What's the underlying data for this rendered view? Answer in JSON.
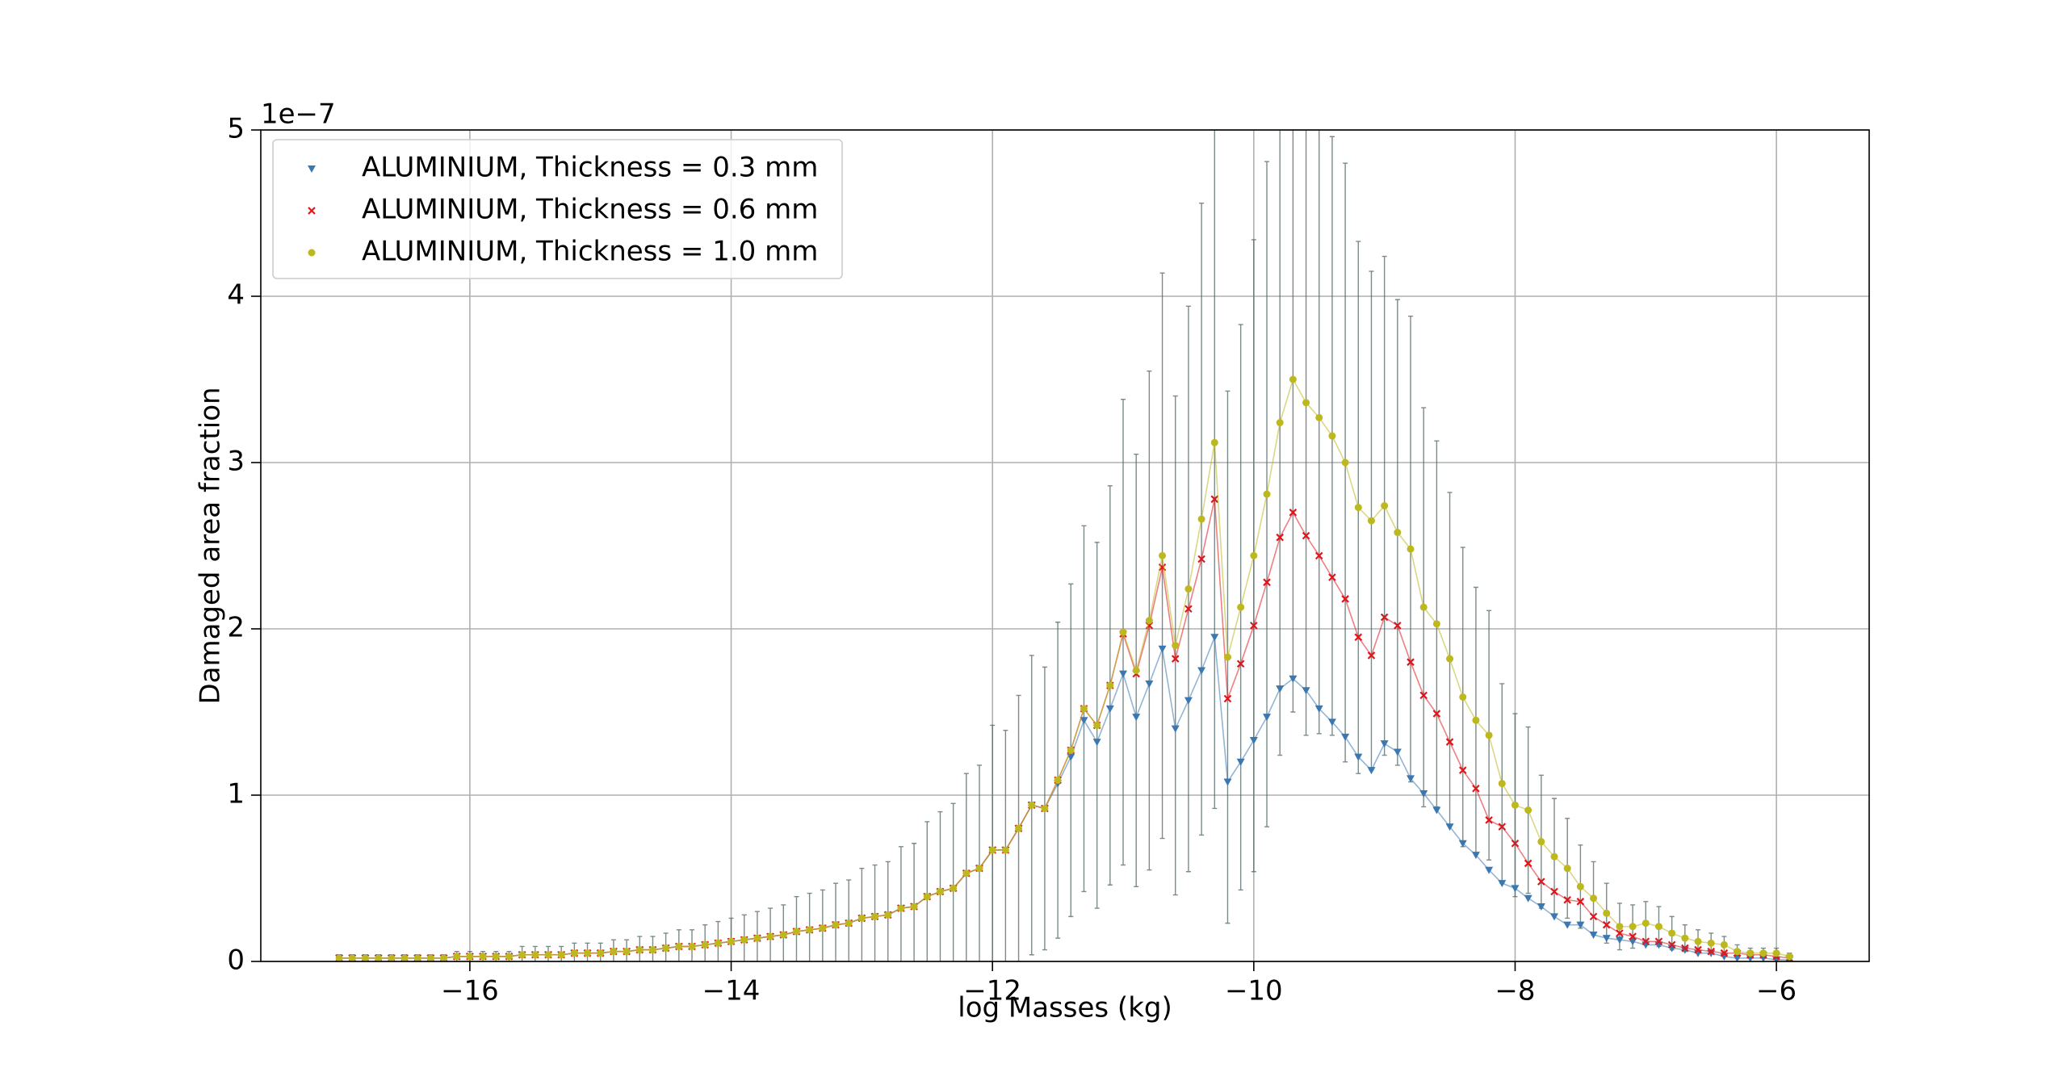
{
  "chart_data": {
    "type": "scatter_errorbar",
    "xlabel": "log Masses (kg)",
    "ylabel": "Damaged area fraction",
    "y_offset_label": "1e−7",
    "xlim": [
      -17.6,
      -5.29
    ],
    "ylim": [
      0,
      5
    ],
    "xticks": [
      {
        "value": -16,
        "label": "−16"
      },
      {
        "value": -14,
        "label": "−14"
      },
      {
        "value": -12,
        "label": "−12"
      },
      {
        "value": -10,
        "label": "−10"
      },
      {
        "value": -8,
        "label": "−8"
      },
      {
        "value": -6,
        "label": "−6"
      }
    ],
    "yticks": [
      0,
      1,
      2,
      3,
      4,
      5
    ],
    "grid": true,
    "legend": "upper left",
    "error_color": "#4f6363",
    "x": [
      -17.0,
      -16.9,
      -16.8,
      -16.7,
      -16.6,
      -16.5,
      -16.4,
      -16.3,
      -16.2,
      -16.1,
      -16.0,
      -15.9,
      -15.8,
      -15.7,
      -15.6,
      -15.5,
      -15.4,
      -15.3,
      -15.2,
      -15.1,
      -15.0,
      -14.9,
      -14.8,
      -14.7,
      -14.6,
      -14.5,
      -14.4,
      -14.3,
      -14.2,
      -14.1,
      -14.0,
      -13.9,
      -13.8,
      -13.7,
      -13.6,
      -13.5,
      -13.4,
      -13.3,
      -13.2,
      -13.1,
      -13.0,
      -12.9,
      -12.8,
      -12.7,
      -12.6,
      -12.5,
      -12.4,
      -12.3,
      -12.2,
      -12.1,
      -12.0,
      -11.9,
      -11.8,
      -11.7,
      -11.6,
      -11.5,
      -11.4,
      -11.3,
      -11.2,
      -11.1,
      -11.0,
      -10.9,
      -10.8,
      -10.7,
      -10.6,
      -10.5,
      -10.4,
      -10.3,
      -10.2,
      -10.1,
      -10.0,
      -9.9,
      -9.8,
      -9.7,
      -9.6,
      -9.5,
      -9.4,
      -9.3,
      -9.2,
      -9.1,
      -9.0,
      -8.9,
      -8.8,
      -8.7,
      -8.6,
      -8.5,
      -8.4,
      -8.3,
      -8.2,
      -8.1,
      -8.0,
      -7.9,
      -7.8,
      -7.7,
      -7.6,
      -7.5,
      -7.4,
      -7.3,
      -7.2,
      -7.1,
      -7.0,
      -6.9,
      -6.8,
      -6.7,
      -6.6,
      -6.5,
      -6.4,
      -6.3,
      -6.2,
      -6.1,
      -6.0,
      -5.9
    ],
    "series": [
      {
        "name": "ALUMINIUM, Thickness = 0.3 mm",
        "color": "#3b78b0",
        "marker": "triangle",
        "values": [
          0.02,
          0.02,
          0.02,
          0.02,
          0.02,
          0.02,
          0.02,
          0.02,
          0.02,
          0.03,
          0.03,
          0.03,
          0.03,
          0.03,
          0.04,
          0.04,
          0.04,
          0.04,
          0.05,
          0.05,
          0.05,
          0.06,
          0.06,
          0.07,
          0.07,
          0.08,
          0.09,
          0.09,
          0.1,
          0.11,
          0.12,
          0.13,
          0.14,
          0.15,
          0.16,
          0.18,
          0.19,
          0.2,
          0.22,
          0.23,
          0.26,
          0.27,
          0.28,
          0.32,
          0.33,
          0.39,
          0.42,
          0.44,
          0.53,
          0.56,
          0.67,
          0.67,
          0.8,
          0.94,
          0.92,
          1.07,
          1.23,
          1.45,
          1.32,
          1.52,
          1.73,
          1.47,
          1.67,
          1.88,
          1.4,
          1.57,
          1.75,
          1.95,
          1.08,
          1.2,
          1.33,
          1.47,
          1.64,
          1.7,
          1.63,
          1.52,
          1.44,
          1.35,
          1.23,
          1.15,
          1.31,
          1.26,
          1.1,
          1.01,
          0.91,
          0.81,
          0.71,
          0.64,
          0.55,
          0.47,
          0.44,
          0.38,
          0.33,
          0.27,
          0.22,
          0.22,
          0.16,
          0.14,
          0.13,
          0.12,
          0.1,
          0.1,
          0.08,
          0.07,
          0.05,
          0.05,
          0.03,
          0.02,
          0.02,
          0.02,
          0.01,
          0.01
        ]
      },
      {
        "name": "ALUMINIUM, Thickness = 0.6 mm",
        "color": "#e0161b",
        "marker": "x",
        "values": [
          0.02,
          0.02,
          0.02,
          0.02,
          0.02,
          0.02,
          0.02,
          0.02,
          0.02,
          0.03,
          0.03,
          0.03,
          0.03,
          0.03,
          0.04,
          0.04,
          0.04,
          0.04,
          0.05,
          0.05,
          0.05,
          0.06,
          0.06,
          0.07,
          0.07,
          0.08,
          0.09,
          0.09,
          0.1,
          0.11,
          0.12,
          0.13,
          0.14,
          0.15,
          0.16,
          0.18,
          0.19,
          0.2,
          0.22,
          0.23,
          0.26,
          0.27,
          0.28,
          0.32,
          0.33,
          0.39,
          0.42,
          0.44,
          0.53,
          0.56,
          0.67,
          0.67,
          0.8,
          0.94,
          0.92,
          1.09,
          1.27,
          1.52,
          1.42,
          1.66,
          1.97,
          1.73,
          2.02,
          2.37,
          1.82,
          2.12,
          2.42,
          2.78,
          1.58,
          1.79,
          2.02,
          2.28,
          2.55,
          2.7,
          2.56,
          2.44,
          2.31,
          2.18,
          1.95,
          1.84,
          2.07,
          2.02,
          1.8,
          1.6,
          1.49,
          1.32,
          1.15,
          1.04,
          0.85,
          0.81,
          0.71,
          0.59,
          0.48,
          0.42,
          0.37,
          0.36,
          0.27,
          0.22,
          0.17,
          0.15,
          0.12,
          0.12,
          0.1,
          0.08,
          0.07,
          0.06,
          0.05,
          0.05,
          0.04,
          0.04,
          0.03,
          0.02
        ]
      },
      {
        "name": "ALUMINIUM, Thickness = 1.0 mm",
        "color": "#bcb81e",
        "marker": "circle",
        "values": [
          0.02,
          0.02,
          0.02,
          0.02,
          0.02,
          0.02,
          0.02,
          0.02,
          0.02,
          0.03,
          0.03,
          0.03,
          0.03,
          0.03,
          0.04,
          0.04,
          0.04,
          0.04,
          0.05,
          0.05,
          0.05,
          0.06,
          0.06,
          0.07,
          0.07,
          0.08,
          0.09,
          0.09,
          0.1,
          0.11,
          0.12,
          0.13,
          0.14,
          0.15,
          0.16,
          0.18,
          0.19,
          0.2,
          0.22,
          0.23,
          0.26,
          0.27,
          0.28,
          0.32,
          0.33,
          0.39,
          0.42,
          0.44,
          0.53,
          0.56,
          0.67,
          0.67,
          0.8,
          0.94,
          0.92,
          1.09,
          1.27,
          1.52,
          1.42,
          1.66,
          1.98,
          1.75,
          2.05,
          2.44,
          1.9,
          2.24,
          2.66,
          3.12,
          1.83,
          2.13,
          2.44,
          2.81,
          3.24,
          3.5,
          3.36,
          3.27,
          3.16,
          3.0,
          2.73,
          2.65,
          2.74,
          2.58,
          2.48,
          2.13,
          2.03,
          1.82,
          1.59,
          1.45,
          1.36,
          1.07,
          0.94,
          0.91,
          0.72,
          0.63,
          0.56,
          0.45,
          0.38,
          0.29,
          0.21,
          0.21,
          0.23,
          0.21,
          0.17,
          0.14,
          0.12,
          0.11,
          0.1,
          0.06,
          0.05,
          0.05,
          0.05,
          0.03
        ],
        "errors": [
          0.02,
          0.02,
          0.02,
          0.02,
          0.02,
          0.02,
          0.02,
          0.02,
          0.02,
          0.03,
          0.03,
          0.03,
          0.03,
          0.03,
          0.05,
          0.05,
          0.05,
          0.05,
          0.06,
          0.06,
          0.06,
          0.07,
          0.07,
          0.08,
          0.08,
          0.09,
          0.1,
          0.1,
          0.12,
          0.13,
          0.14,
          0.15,
          0.16,
          0.17,
          0.18,
          0.21,
          0.22,
          0.23,
          0.25,
          0.26,
          0.3,
          0.31,
          0.32,
          0.37,
          0.38,
          0.45,
          0.48,
          0.51,
          0.6,
          0.62,
          0.75,
          0.72,
          0.8,
          0.9,
          0.85,
          0.95,
          1.0,
          1.1,
          1.1,
          1.2,
          1.4,
          1.3,
          1.5,
          1.7,
          1.5,
          1.7,
          1.9,
          2.2,
          1.6,
          1.7,
          1.9,
          2.0,
          2.0,
          2.0,
          2.0,
          1.9,
          1.8,
          1.8,
          1.6,
          1.5,
          1.5,
          1.4,
          1.4,
          1.2,
          1.1,
          1.0,
          0.9,
          0.8,
          0.75,
          0.6,
          0.55,
          0.5,
          0.4,
          0.35,
          0.3,
          0.25,
          0.22,
          0.18,
          0.14,
          0.13,
          0.13,
          0.12,
          0.1,
          0.08,
          0.07,
          0.06,
          0.05,
          0.04,
          0.03,
          0.03,
          0.03,
          0.02
        ]
      }
    ]
  }
}
